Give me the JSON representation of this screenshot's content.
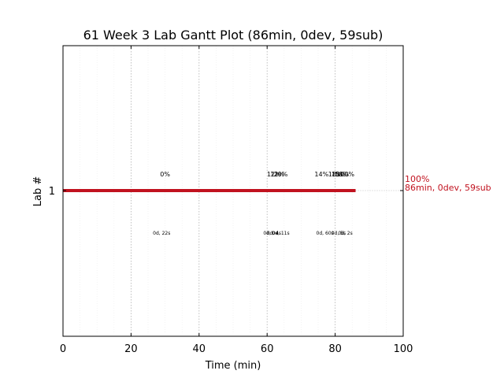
{
  "chart_data": {
    "type": "gantt",
    "title": "61 Week 3 Lab Gantt Plot (86min, 0dev, 59sub)",
    "xlabel": "Time (min)",
    "ylabel": "Lab #",
    "xlim": [
      0,
      100
    ],
    "x_ticks": [
      0,
      20,
      40,
      60,
      80,
      100
    ],
    "y_ticks": [
      "1"
    ],
    "grid": "x dotted",
    "bar_color": "#c1121f",
    "bars": [
      {
        "lab": "1",
        "start": 0,
        "end": 86
      }
    ],
    "end_label": {
      "line1": "100%",
      "line2": "86min, 0dev, 59sub"
    },
    "annotations_top": [
      {
        "x": 30,
        "text": "0%"
      },
      {
        "x": 62,
        "text": "12%"
      },
      {
        "x": 63,
        "text": "12%"
      },
      {
        "x": 64,
        "text": "20%"
      },
      {
        "x": 76,
        "text": "14%"
      },
      {
        "x": 80,
        "text": "18%"
      },
      {
        "x": 81,
        "text": "18%"
      },
      {
        "x": 82,
        "text": "58%"
      },
      {
        "x": 83,
        "text": "100%"
      }
    ],
    "annotations_bottom": [
      {
        "x": 29,
        "text": "0d, 22s"
      },
      {
        "x": 61,
        "text": "0d, 0s"
      },
      {
        "x": 62,
        "text": "0d, 4s"
      },
      {
        "x": 64,
        "text": "0d, 11s"
      },
      {
        "x": 77,
        "text": "0d, 60s"
      },
      {
        "x": 81,
        "text": "0d, 5s"
      },
      {
        "x": 83,
        "text": "0d, 2s"
      }
    ]
  }
}
